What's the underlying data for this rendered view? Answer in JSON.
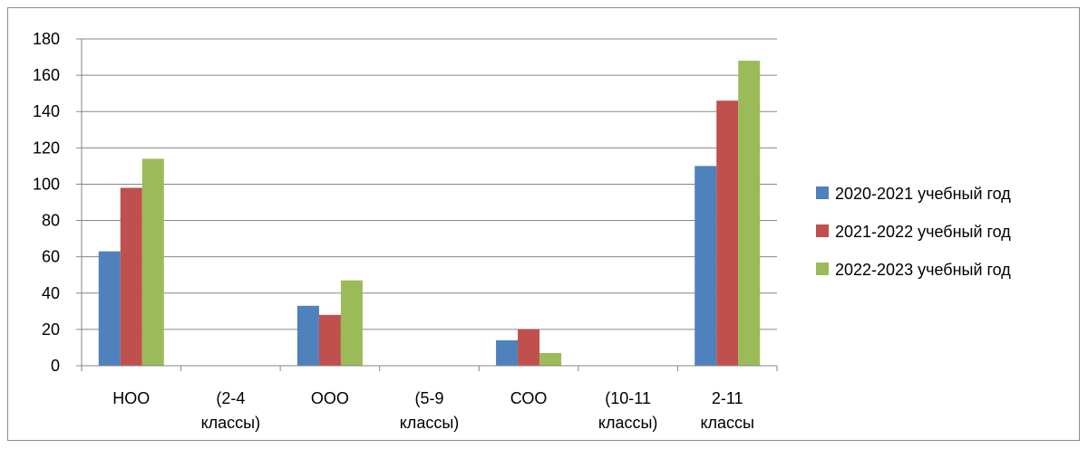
{
  "chart_data": {
    "type": "bar",
    "title": "",
    "xlabel": "",
    "ylabel": "",
    "ylim": [
      0,
      180
    ],
    "yticks": [
      0,
      20,
      40,
      60,
      80,
      100,
      120,
      140,
      160,
      180
    ],
    "grid": true,
    "legend_position": "right",
    "categories": [
      [
        "НОО",
        ""
      ],
      [
        "(2-4",
        "классы)"
      ],
      [
        "ООО",
        ""
      ],
      [
        "(5-9",
        "классы)"
      ],
      [
        "СОО",
        ""
      ],
      [
        "(10-11",
        "классы)"
      ],
      [
        "2-11",
        "классы"
      ]
    ],
    "series": [
      {
        "name": "2020-2021 учебный год",
        "color": "#4f81bd",
        "values": [
          63,
          null,
          33,
          null,
          14,
          null,
          110
        ]
      },
      {
        "name": "2021-2022 учебный год",
        "color": "#c0504d",
        "values": [
          98,
          null,
          28,
          null,
          20,
          null,
          146
        ]
      },
      {
        "name": "2022-2023 учебный год",
        "color": "#9bbb59",
        "values": [
          114,
          null,
          47,
          null,
          7,
          null,
          168
        ]
      }
    ]
  }
}
